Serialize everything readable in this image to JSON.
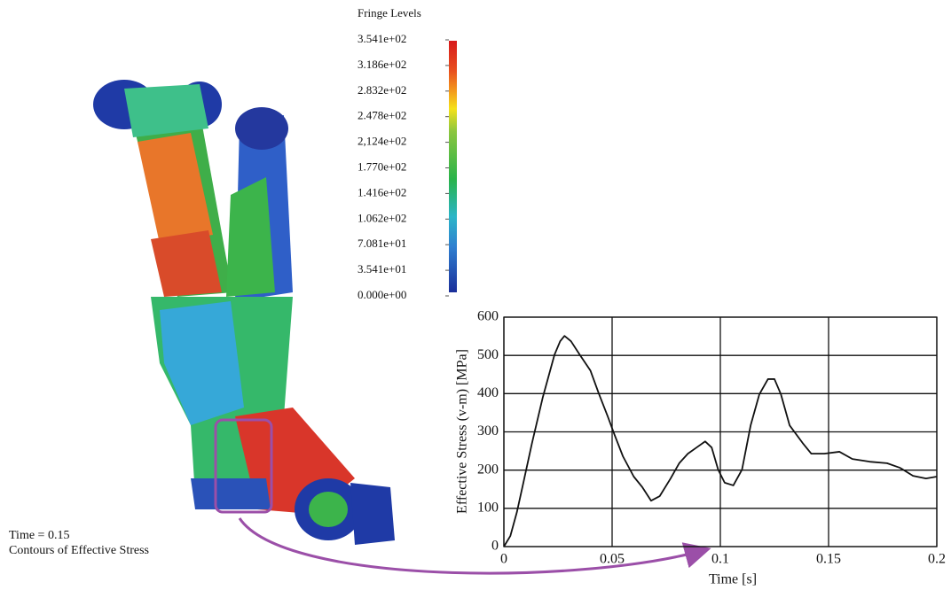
{
  "fringe": {
    "title": "Fringe Levels",
    "levels": [
      "3.541e+02",
      "3.186e+02",
      "2.832e+02",
      "2.478e+02",
      "2,124e+02",
      "1.770e+02",
      "1.416e+02",
      "1.062e+02",
      "7.081e+01",
      "3.541e+01",
      "0.000e+00"
    ]
  },
  "annotation": {
    "time": "Time = 0.15",
    "caption": "Contours of Effective Stress"
  },
  "chart_data": {
    "type": "line",
    "x_label": "Time [s]",
    "y_label": "Effective Stress (v-m) [MPa]",
    "x": [
      0,
      0.003,
      0.006,
      0.009,
      0.013,
      0.018,
      0.0234,
      0.026,
      0.028,
      0.031,
      0.035,
      0.04,
      0.044,
      0.048,
      0.051,
      0.055,
      0.06,
      0.064,
      0.068,
      0.072,
      0.077,
      0.081,
      0.085,
      0.089,
      0.093,
      0.096,
      0.099,
      0.102,
      0.106,
      0.11,
      0.114,
      0.118,
      0.122,
      0.125,
      0.128,
      0.132,
      0.138,
      0.142,
      0.148,
      0.155,
      0.161,
      0.169,
      0.177,
      0.183,
      0.189,
      0.195,
      0.2
    ],
    "values": [
      0,
      28,
      90,
      167,
      271,
      391,
      502,
      537,
      551,
      537,
      502,
      460,
      398,
      340,
      294,
      236,
      183,
      155,
      120,
      132,
      178,
      218,
      243,
      259,
      275,
      259,
      201,
      167,
      160,
      201,
      317,
      398,
      438,
      438,
      398,
      317,
      271,
      243,
      243,
      248,
      229,
      222,
      218,
      206,
      185,
      178,
      183
    ],
    "color": "#111111",
    "xlim": [
      0,
      0.2
    ],
    "xticks": [
      0,
      0.05,
      0.1,
      0.15,
      0.2
    ],
    "ylim": [
      0,
      600
    ],
    "yticks": [
      0,
      100,
      200,
      300,
      400,
      500,
      600
    ],
    "grid": true
  }
}
